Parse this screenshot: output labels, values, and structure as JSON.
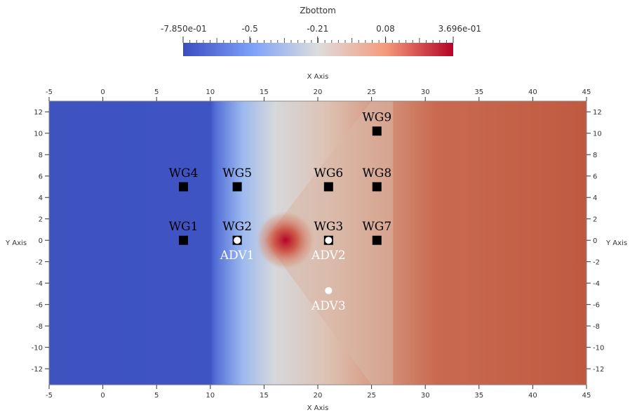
{
  "chart_data": {
    "type": "heatmap",
    "colorbar": {
      "title": "Zbottom",
      "min": -0.785,
      "max": 0.3696,
      "tick_labels": [
        {
          "value": -0.785,
          "label": "-7.850e-01"
        },
        {
          "value": -0.5,
          "label": "-0.5"
        },
        {
          "value": -0.21,
          "label": "-0.21"
        },
        {
          "value": 0.08,
          "label": "0.08"
        },
        {
          "value": 0.3696,
          "label": "3.696e-01"
        }
      ],
      "colors": {
        "low": "#3b4cc0",
        "mid": "#dddddd",
        "high": "#b40426"
      }
    },
    "xlabel": "X Axis",
    "ylabel": "Y Axis",
    "xlim": [
      -5,
      45
    ],
    "ylim": [
      -13.5,
      13
    ],
    "xticks": [
      -5,
      0,
      5,
      10,
      15,
      20,
      25,
      30,
      35,
      40,
      45
    ],
    "yticks": [
      -12,
      -10,
      -8,
      -6,
      -4,
      -2,
      0,
      2,
      4,
      6,
      8,
      10,
      12
    ],
    "field": {
      "description_values": [
        {
          "x": -5,
          "z": -0.7
        },
        {
          "x": 10.5,
          "z": -0.7
        },
        {
          "x": 14,
          "z": -0.35
        },
        {
          "x": 17,
          "z": -0.21
        },
        {
          "x": 21,
          "z": 0.0
        },
        {
          "x": 30,
          "z": 0.18
        },
        {
          "x": 45,
          "z": 0.2
        }
      ],
      "bump_peak": {
        "x": 17,
        "y": 0,
        "z": 0.3696
      }
    },
    "markers": [
      {
        "label": "WG1",
        "x": 7.5,
        "y": 0,
        "shape": "square"
      },
      {
        "label": "WG2",
        "x": 12.5,
        "y": 0,
        "shape": "square"
      },
      {
        "label": "WG3",
        "x": 21,
        "y": 0,
        "shape": "square"
      },
      {
        "label": "WG4",
        "x": 7.5,
        "y": 5,
        "shape": "square"
      },
      {
        "label": "WG5",
        "x": 12.5,
        "y": 5,
        "shape": "square"
      },
      {
        "label": "WG6",
        "x": 21,
        "y": 5,
        "shape": "square"
      },
      {
        "label": "WG7",
        "x": 25.5,
        "y": 0,
        "shape": "square"
      },
      {
        "label": "WG8",
        "x": 25.5,
        "y": 5,
        "shape": "square"
      },
      {
        "label": "WG9",
        "x": 25.5,
        "y": 10.2,
        "shape": "square"
      },
      {
        "label": "ADV1",
        "x": 12.5,
        "y": 0,
        "shape": "circle"
      },
      {
        "label": "ADV2",
        "x": 21,
        "y": 0,
        "shape": "circle"
      },
      {
        "label": "ADV3",
        "x": 21,
        "y": -4.7,
        "shape": "circle"
      }
    ]
  }
}
